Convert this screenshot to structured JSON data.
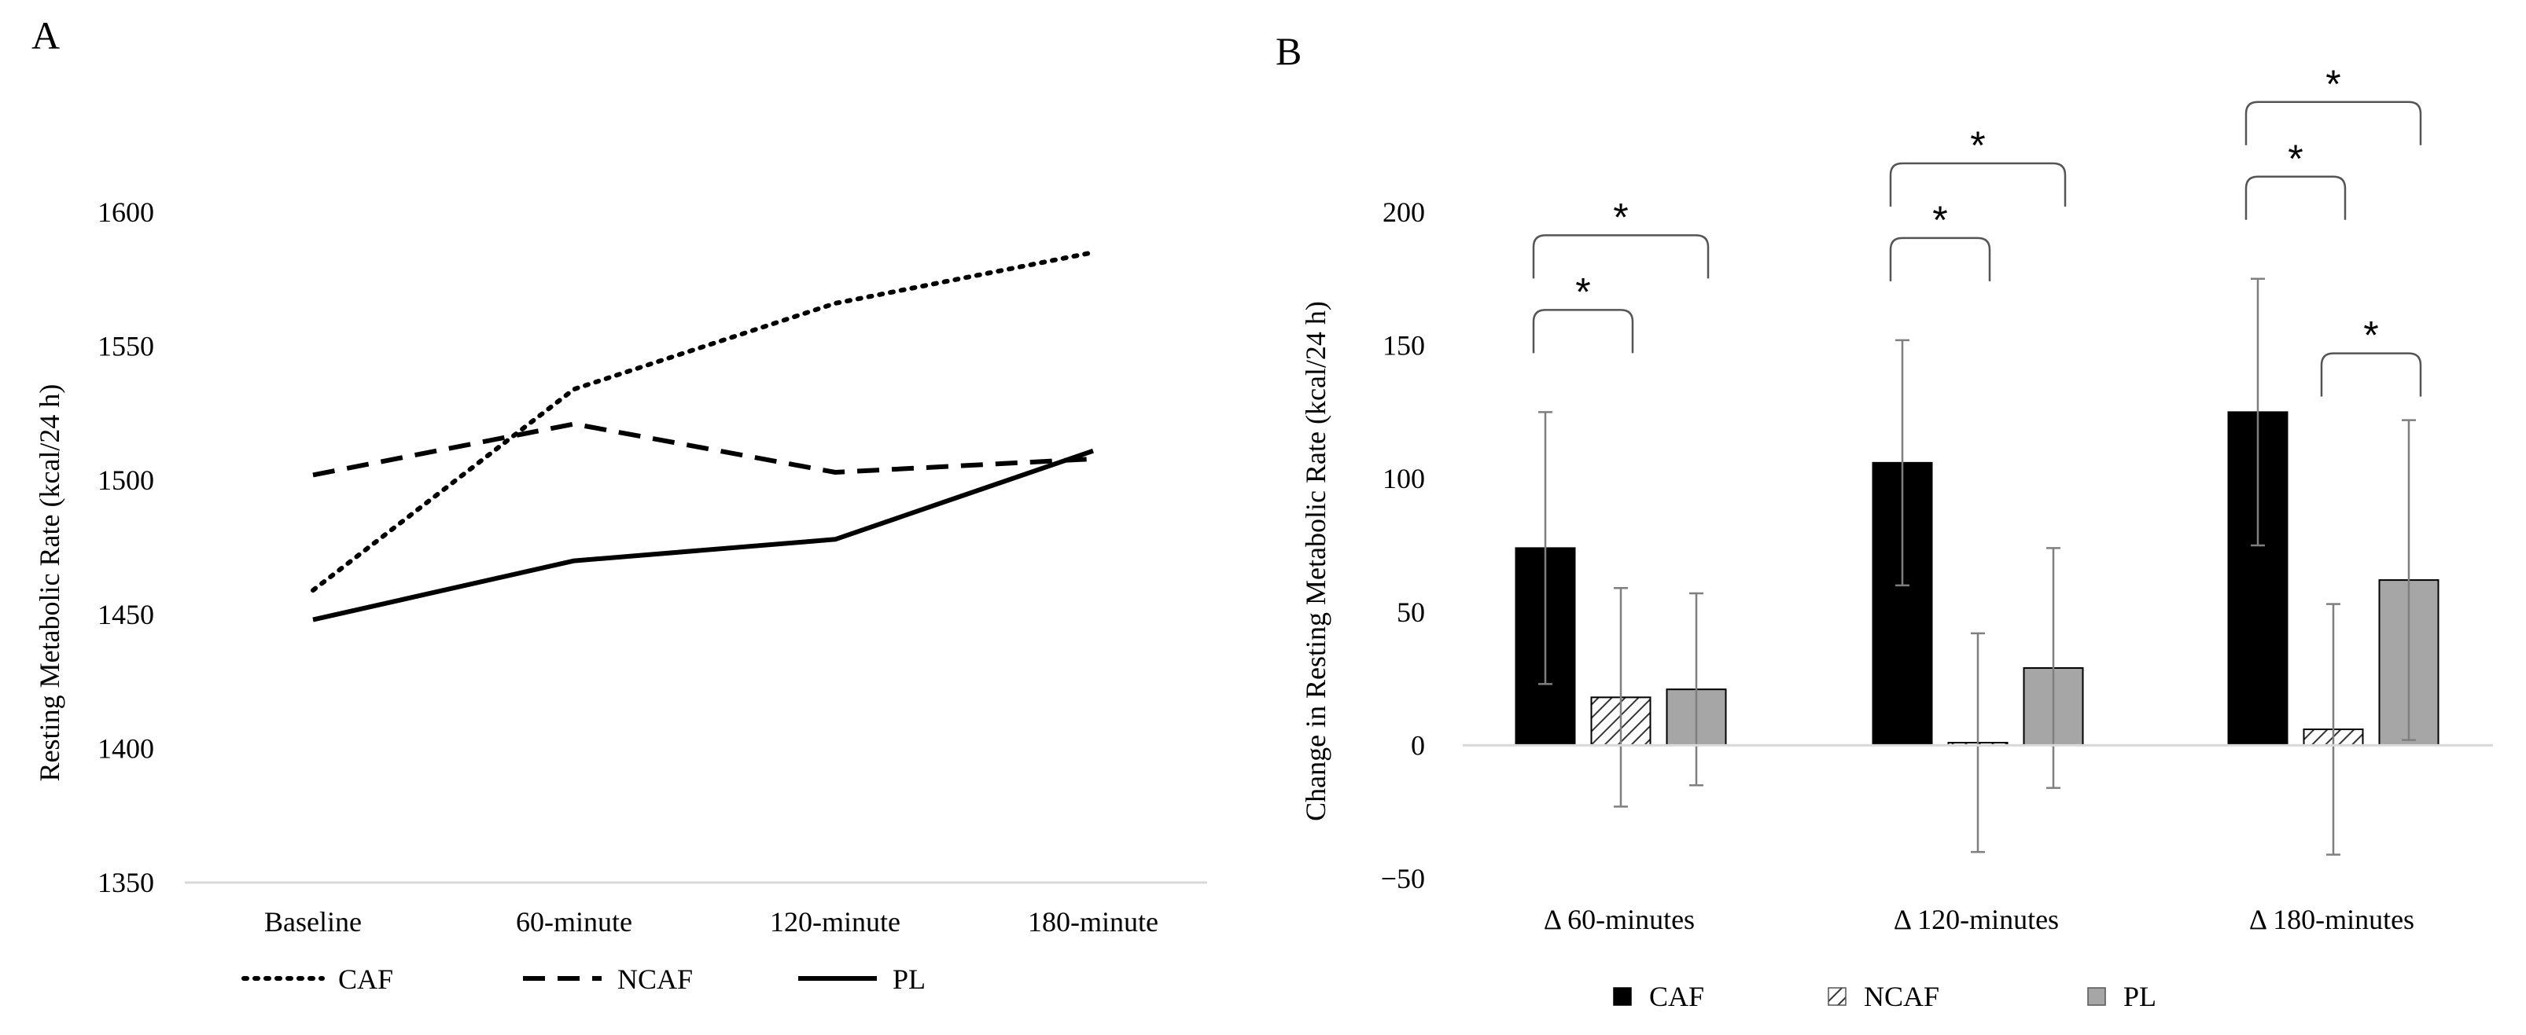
{
  "chart_data": [
    {
      "panel": "A",
      "type": "line",
      "categories": [
        "Baseline",
        "60-minute",
        "120-minute",
        "180-minute"
      ],
      "ylabel": "Resting Metabolic Rate (kcal/24 h)",
      "ylim": [
        1350,
        1600
      ],
      "yticks": [
        1350,
        1400,
        1450,
        1500,
        1550,
        1600
      ],
      "grid": false,
      "legend_position": "bottom",
      "series": [
        {
          "name": "CAF",
          "style": "dotted",
          "values": [
            1459,
            1534,
            1566,
            1585
          ]
        },
        {
          "name": "NCAF",
          "style": "dashed",
          "values": [
            1502,
            1521,
            1503,
            1508
          ]
        },
        {
          "name": "PL",
          "style": "solid",
          "values": [
            1448,
            1470,
            1478,
            1511
          ]
        }
      ]
    },
    {
      "panel": "B",
      "type": "bar",
      "categories": [
        "Δ 60-minutes",
        "Δ 120-minutes",
        "Δ 180-minutes"
      ],
      "ylabel": "Change in Resting Metabolic Rate (kcal/24 h)",
      "ylim": [
        -50,
        200
      ],
      "yticks": [
        -50,
        0,
        50,
        100,
        150,
        200
      ],
      "grid": false,
      "legend_position": "bottom",
      "series": [
        {
          "name": "CAF",
          "fill": "solid-black",
          "values": [
            74,
            106,
            125
          ],
          "error_low": [
            23,
            60,
            75
          ],
          "error_high": [
            125,
            152,
            175
          ]
        },
        {
          "name": "NCAF",
          "fill": "hatched",
          "values": [
            18,
            1,
            6
          ],
          "error_low": [
            -23,
            -40,
            -41
          ],
          "error_high": [
            59,
            42,
            53
          ]
        },
        {
          "name": "PL",
          "fill": "gray",
          "values": [
            21,
            29,
            62
          ],
          "error_low": [
            -15,
            -16,
            2
          ],
          "error_high": [
            57,
            74,
            122
          ]
        }
      ],
      "annotations": [
        {
          "category": 0,
          "from": "CAF",
          "to": "NCAF",
          "text": "*",
          "level": 0
        },
        {
          "category": 0,
          "from": "CAF",
          "to": "PL",
          "text": "*",
          "level": 1
        },
        {
          "category": 1,
          "from": "CAF",
          "to": "NCAF",
          "text": "*",
          "level": 0
        },
        {
          "category": 1,
          "from": "CAF",
          "to": "PL",
          "text": "*",
          "level": 1
        },
        {
          "category": 2,
          "from": "NCAF",
          "to": "PL",
          "text": "*",
          "level": -1
        },
        {
          "category": 2,
          "from": "CAF",
          "to": "NCAF",
          "text": "*",
          "level": 0
        },
        {
          "category": 2,
          "from": "CAF",
          "to": "PL",
          "text": "*",
          "level": 1
        }
      ]
    }
  ],
  "panel_labels": {
    "a": "A",
    "b": "B"
  }
}
